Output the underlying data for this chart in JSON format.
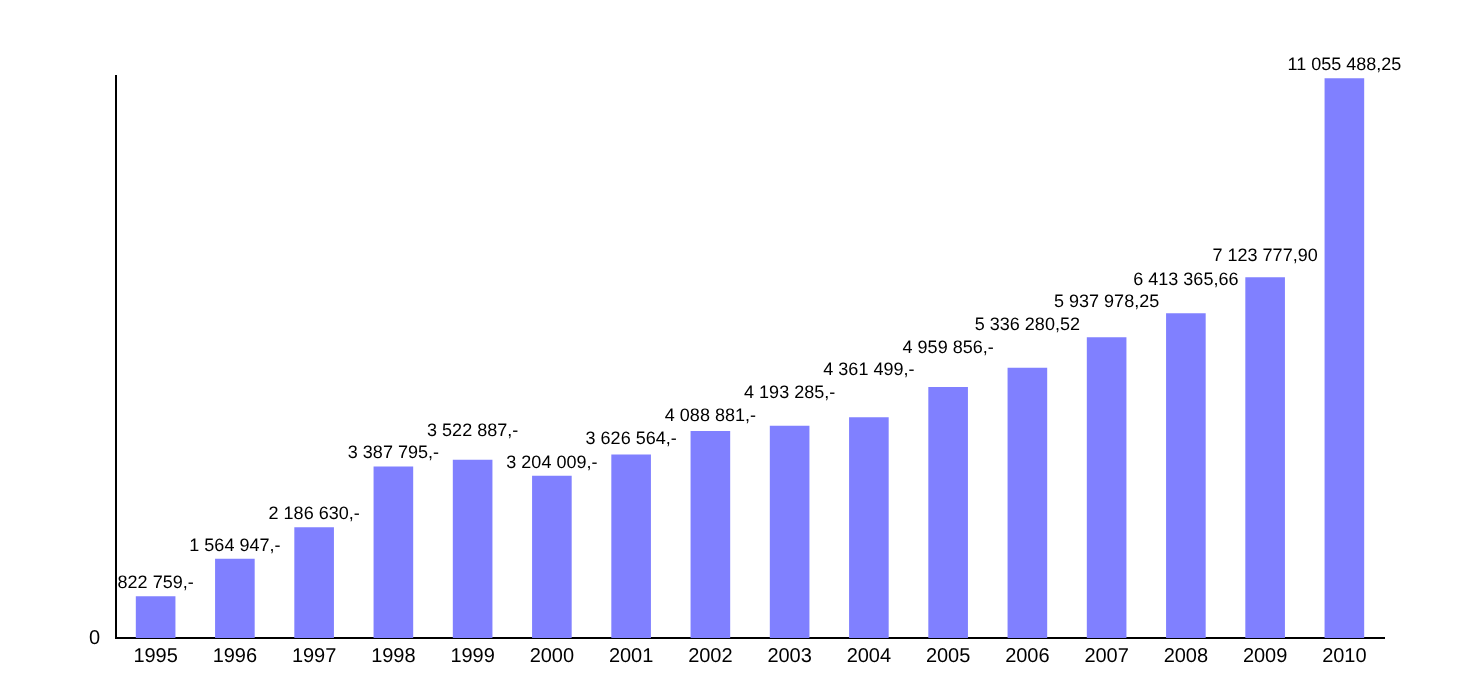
{
  "chart_data": {
    "type": "bar",
    "categories": [
      "1995",
      "1996",
      "1997",
      "1998",
      "1999",
      "2000",
      "2001",
      "2002",
      "2003",
      "2004",
      "2005",
      "2006",
      "2007",
      "2008",
      "2009",
      "2010"
    ],
    "values": [
      822759,
      1564947,
      2186630,
      3387795,
      3522887,
      3204009,
      3626564,
      4088881,
      4193285,
      4361499,
      4959856,
      5336280.52,
      5937978.25,
      6413365.66,
      7123777.9,
      11055488.25
    ],
    "value_labels": [
      "822 759,-",
      "1 564 947,-",
      "2 186 630,-",
      "3 387 795,-",
      "3 522 887,-",
      "3 204 009,-",
      "3 626 564,-",
      "4 088 881,-",
      "4 193 285,-",
      "4 361 499,-",
      "4 959 856,-",
      "5 336 280,52",
      "5 937 978,25",
      "6 413 365,66",
      "7 123 777,90",
      "11 055 488,25"
    ],
    "annotations": [
      "0"
    ],
    "ylim": [
      0,
      11100000
    ],
    "color": "#8080ff",
    "grid": false,
    "legend": false
  }
}
